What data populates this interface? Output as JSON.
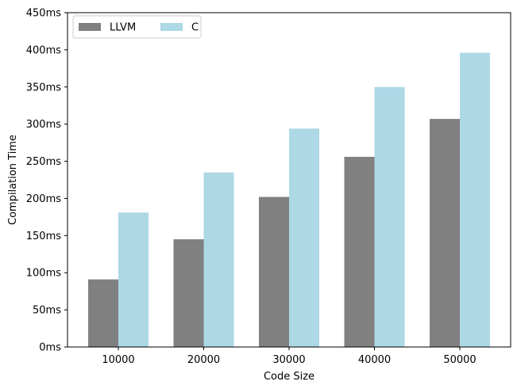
{
  "chart_data": {
    "type": "bar",
    "title": "",
    "xlabel": "Code Size",
    "ylabel": "Compilation Time",
    "categories": [
      "10000",
      "20000",
      "30000",
      "40000",
      "50000"
    ],
    "series": [
      {
        "name": "LLVM",
        "color": "#808080",
        "values": [
          91,
          145,
          202,
          256,
          307
        ]
      },
      {
        "name": "C",
        "color": "#add8e6",
        "values": [
          181,
          235,
          294,
          350,
          396
        ]
      }
    ],
    "ylim": [
      0,
      450
    ],
    "yticks": [
      0,
      50,
      100,
      150,
      200,
      250,
      300,
      350,
      400,
      450
    ],
    "ytick_labels": [
      "0ms",
      "50ms",
      "100ms",
      "150ms",
      "200ms",
      "250ms",
      "300ms",
      "350ms",
      "400ms",
      "450ms"
    ],
    "grid": false,
    "legend_position": "top-left"
  }
}
